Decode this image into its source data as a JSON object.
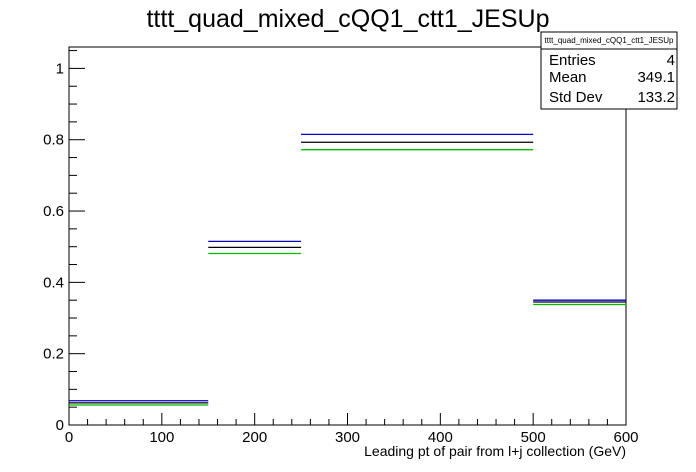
{
  "chart_data": {
    "type": "histogram",
    "title": "tttt_quad_mixed_cQQ1_ctt1_JESUp",
    "xlabel": "Leading pt of pair from l+j collection (GeV)",
    "ylabel": "",
    "xlim": [
      0,
      600
    ],
    "ylim": [
      0,
      1.06
    ],
    "x_ticks": [
      "0",
      "100",
      "200",
      "300",
      "400",
      "500",
      "600"
    ],
    "y_ticks": [
      "0",
      "0.2",
      "0.4",
      "0.6",
      "0.8",
      "1"
    ],
    "x_tick_values": [
      0,
      100,
      200,
      300,
      400,
      500,
      600
    ],
    "y_tick_values": [
      0,
      0.2,
      0.4,
      0.6,
      0.8,
      1.0
    ],
    "bins": [
      {
        "low": 0,
        "high": 150
      },
      {
        "low": 150,
        "high": 250
      },
      {
        "low": 250,
        "high": 500
      },
      {
        "low": 500,
        "high": 600
      }
    ],
    "series": [
      {
        "color": "#0000cc",
        "values": [
          0.068,
          0.515,
          0.815,
          0.35
        ]
      },
      {
        "color": "#000000",
        "values": [
          0.062,
          0.498,
          0.793,
          0.345
        ]
      },
      {
        "color": "#00bb00",
        "values": [
          0.056,
          0.481,
          0.772,
          0.338
        ]
      }
    ],
    "grid": false,
    "stats_box": {
      "name": "tttt_quad_mixed_cQQ1_ctt1_JESUp",
      "rows": [
        {
          "label": "Entries",
          "value": "4"
        },
        {
          "label": "Mean",
          "value": "349.1"
        },
        {
          "label": "Std Dev",
          "value": "133.2"
        }
      ]
    }
  }
}
